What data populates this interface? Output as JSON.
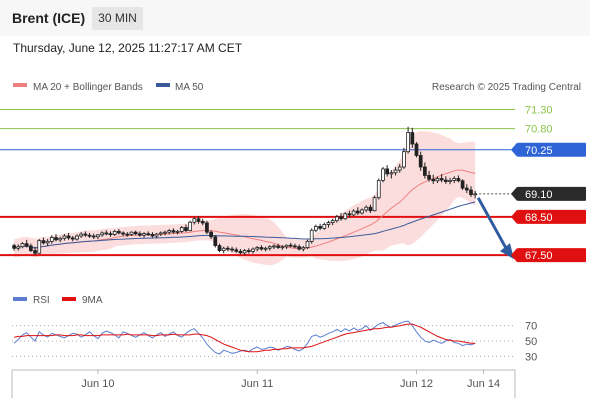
{
  "header": {
    "title": "Brent (ICE)",
    "timeframe_label": "30 MIN"
  },
  "subtitle": "Thursday, June 12, 2025 11:27:17 AM CET",
  "colors": {
    "ma20": "#f08080",
    "bollinger": "#fbd2d2",
    "ma50": "#3a5a9a",
    "up": "#ffffff",
    "down": "#222222",
    "resistance_green": "#8bc34a",
    "pivot": "#2f64d6",
    "support": "#e01010",
    "current": "#2b2b2b",
    "arrow": "#2e5c9e",
    "rsi": "#5b7ecf",
    "rsi_ma": "#e01010"
  },
  "legend": {
    "ma20_label": "MA 20 + Bollinger Bands",
    "ma50_label": "MA 50",
    "rsi_label": "RSI",
    "rsi_ma_label": "9MA",
    "credit": "Research © 2025 Trading Central"
  },
  "chart_data": {
    "type": "candlestick",
    "y_range": [
      66.8,
      71.6
    ],
    "x_labels": [
      {
        "label": "Jun 10",
        "index": 20
      },
      {
        "label": "Jun 11",
        "index": 58
      },
      {
        "label": "Jun 12",
        "index": 96
      },
      {
        "label": "Jun 14",
        "index": 112
      }
    ],
    "total_slots": 120,
    "candles": [
      [
        67.75,
        67.8,
        67.62,
        67.68
      ],
      [
        67.68,
        67.78,
        67.62,
        67.72
      ],
      [
        67.72,
        67.84,
        67.68,
        67.8
      ],
      [
        67.8,
        67.9,
        67.7,
        67.74
      ],
      [
        67.74,
        67.8,
        67.58,
        67.62
      ],
      [
        67.62,
        67.72,
        67.5,
        67.55
      ],
      [
        67.55,
        67.92,
        67.54,
        67.88
      ],
      [
        67.88,
        67.96,
        67.78,
        67.82
      ],
      [
        67.82,
        67.92,
        67.74,
        67.86
      ],
      [
        67.86,
        68.02,
        67.8,
        67.96
      ],
      [
        67.96,
        68.05,
        67.86,
        67.9
      ],
      [
        67.9,
        67.98,
        67.84,
        67.94
      ],
      [
        67.94,
        68.05,
        67.88,
        68.0
      ],
      [
        68.0,
        68.08,
        67.9,
        67.95
      ],
      [
        67.95,
        68.0,
        67.86,
        67.92
      ],
      [
        67.92,
        68.04,
        67.88,
        68.0
      ],
      [
        68.0,
        68.1,
        67.95,
        68.05
      ],
      [
        68.05,
        68.12,
        67.98,
        68.02
      ],
      [
        68.02,
        68.08,
        67.95,
        68.0
      ],
      [
        68.0,
        68.06,
        67.92,
        67.98
      ],
      [
        67.98,
        68.05,
        67.92,
        68.03
      ],
      [
        68.03,
        68.12,
        67.98,
        68.08
      ],
      [
        68.08,
        68.15,
        68.02,
        68.06
      ],
      [
        68.06,
        68.12,
        67.98,
        68.04
      ],
      [
        68.04,
        68.16,
        68.0,
        68.12
      ],
      [
        68.12,
        68.18,
        68.04,
        68.08
      ],
      [
        68.08,
        68.12,
        68.0,
        68.05
      ],
      [
        68.05,
        68.1,
        67.98,
        68.04
      ],
      [
        68.04,
        68.12,
        68.0,
        68.1
      ],
      [
        68.1,
        68.14,
        68.02,
        68.06
      ],
      [
        68.06,
        68.12,
        67.98,
        68.02
      ],
      [
        68.02,
        68.1,
        67.96,
        68.06
      ],
      [
        68.06,
        68.12,
        68.0,
        68.04
      ],
      [
        68.04,
        68.1,
        67.96,
        68.0
      ],
      [
        68.0,
        68.08,
        67.94,
        68.05
      ],
      [
        68.05,
        68.12,
        68.0,
        68.08
      ],
      [
        68.08,
        68.14,
        68.02,
        68.1
      ],
      [
        68.1,
        68.18,
        68.04,
        68.14
      ],
      [
        68.14,
        68.2,
        68.06,
        68.1
      ],
      [
        68.1,
        68.16,
        68.04,
        68.12
      ],
      [
        68.12,
        68.26,
        68.08,
        68.22
      ],
      [
        68.22,
        68.3,
        68.1,
        68.14
      ],
      [
        68.14,
        68.4,
        68.12,
        68.36
      ],
      [
        68.36,
        68.5,
        68.3,
        68.45
      ],
      [
        68.45,
        68.52,
        68.32,
        68.38
      ],
      [
        68.38,
        68.45,
        68.28,
        68.34
      ],
      [
        68.34,
        68.4,
        68.05,
        68.1
      ],
      [
        68.1,
        68.15,
        67.92,
        67.98
      ],
      [
        67.98,
        68.02,
        67.7,
        67.75
      ],
      [
        67.75,
        67.8,
        67.58,
        67.62
      ],
      [
        67.62,
        67.72,
        67.55,
        67.68
      ],
      [
        67.68,
        67.74,
        67.6,
        67.66
      ],
      [
        67.66,
        67.72,
        67.58,
        67.64
      ],
      [
        67.64,
        67.7,
        67.56,
        67.6
      ],
      [
        67.6,
        67.66,
        67.52,
        67.56
      ],
      [
        67.56,
        67.66,
        67.5,
        67.62
      ],
      [
        67.62,
        67.68,
        67.54,
        67.6
      ],
      [
        67.6,
        67.7,
        67.54,
        67.66
      ],
      [
        67.66,
        67.74,
        67.6,
        67.7
      ],
      [
        67.7,
        67.76,
        67.62,
        67.66
      ],
      [
        67.66,
        67.72,
        67.6,
        67.68
      ],
      [
        67.68,
        67.76,
        67.62,
        67.72
      ],
      [
        67.72,
        67.78,
        67.66,
        67.74
      ],
      [
        67.74,
        67.8,
        67.66,
        67.7
      ],
      [
        67.7,
        67.76,
        67.64,
        67.72
      ],
      [
        67.72,
        67.78,
        67.66,
        67.76
      ],
      [
        67.76,
        67.82,
        67.7,
        67.74
      ],
      [
        67.74,
        67.8,
        67.68,
        67.72
      ],
      [
        67.72,
        67.78,
        67.62,
        67.66
      ],
      [
        67.66,
        67.74,
        67.6,
        67.7
      ],
      [
        67.7,
        67.9,
        67.66,
        67.86
      ],
      [
        67.86,
        68.2,
        67.8,
        68.15
      ],
      [
        68.15,
        68.3,
        68.1,
        68.25
      ],
      [
        68.25,
        68.32,
        68.15,
        68.2
      ],
      [
        68.2,
        68.35,
        68.16,
        68.3
      ],
      [
        68.3,
        68.4,
        68.22,
        68.35
      ],
      [
        68.35,
        68.45,
        68.28,
        68.4
      ],
      [
        68.4,
        68.55,
        68.35,
        68.5
      ],
      [
        68.5,
        68.6,
        68.4,
        68.45
      ],
      [
        68.45,
        68.62,
        68.42,
        68.58
      ],
      [
        68.58,
        68.66,
        68.48,
        68.55
      ],
      [
        68.55,
        68.7,
        68.52,
        68.65
      ],
      [
        68.65,
        68.75,
        68.55,
        68.6
      ],
      [
        68.6,
        68.72,
        68.56,
        68.68
      ],
      [
        68.68,
        68.8,
        68.62,
        68.75
      ],
      [
        68.75,
        68.82,
        68.6,
        68.66
      ],
      [
        68.66,
        69.05,
        68.64,
        69.0
      ],
      [
        69.0,
        69.5,
        68.95,
        69.45
      ],
      [
        69.45,
        69.8,
        69.4,
        69.75
      ],
      [
        69.75,
        69.85,
        69.55,
        69.62
      ],
      [
        69.62,
        69.72,
        69.5,
        69.65
      ],
      [
        69.65,
        69.8,
        69.58,
        69.72
      ],
      [
        69.72,
        69.88,
        69.65,
        69.8
      ],
      [
        69.8,
        70.3,
        69.75,
        70.2
      ],
      [
        70.2,
        70.85,
        70.15,
        70.7
      ],
      [
        70.7,
        70.82,
        70.3,
        70.4
      ],
      [
        70.4,
        70.45,
        70.05,
        70.1
      ],
      [
        70.1,
        70.2,
        69.7,
        69.8
      ],
      [
        69.8,
        69.92,
        69.5,
        69.58
      ],
      [
        69.58,
        69.7,
        69.42,
        69.48
      ],
      [
        69.48,
        69.6,
        69.36,
        69.44
      ],
      [
        69.44,
        69.55,
        69.38,
        69.5
      ],
      [
        69.5,
        69.62,
        69.4,
        69.46
      ],
      [
        69.46,
        69.56,
        69.36,
        69.42
      ],
      [
        69.42,
        69.52,
        69.35,
        69.45
      ],
      [
        69.45,
        69.56,
        69.38,
        69.5
      ],
      [
        69.5,
        69.58,
        69.4,
        69.44
      ],
      [
        69.44,
        69.48,
        69.2,
        69.25
      ],
      [
        69.25,
        69.35,
        69.12,
        69.2
      ],
      [
        69.2,
        69.3,
        69.02,
        69.08
      ],
      [
        69.08,
        69.18,
        68.98,
        69.1
      ]
    ],
    "levels": [
      {
        "value": 71.3,
        "label": "71.30",
        "kind": "resistance-minor"
      },
      {
        "value": 70.8,
        "label": "70.80",
        "kind": "resistance-minor"
      },
      {
        "value": 70.25,
        "label": "70.25",
        "kind": "pivot"
      },
      {
        "value": 69.1,
        "label": "69.10",
        "kind": "current"
      },
      {
        "value": 68.5,
        "label": "68.50",
        "kind": "support"
      },
      {
        "value": 67.5,
        "label": "67.50",
        "kind": "support"
      }
    ],
    "forecast_arrow": {
      "from": 69.1,
      "to": 67.5
    },
    "rsi": {
      "y_range": [
        20,
        80
      ],
      "ticks": [
        70,
        50,
        30
      ],
      "rsi_values": [
        47,
        52,
        58,
        61,
        55,
        50,
        62,
        58,
        55,
        60,
        58,
        56,
        54,
        57,
        60,
        59,
        55,
        58,
        62,
        57,
        53,
        60,
        63,
        61,
        58,
        54,
        62,
        60,
        57,
        55,
        58,
        61,
        57,
        54,
        58,
        61,
        56,
        59,
        62,
        57,
        55,
        60,
        64,
        66,
        60,
        54,
        46,
        40,
        35,
        33,
        38,
        36,
        34,
        35,
        37,
        38,
        36,
        40,
        42,
        39,
        40,
        42,
        41,
        38,
        40,
        43,
        42,
        39,
        37,
        40,
        47,
        56,
        58,
        55,
        57,
        60,
        62,
        65,
        62,
        66,
        63,
        67,
        64,
        66,
        70,
        64,
        68,
        72,
        74,
        70,
        68,
        71,
        73,
        75,
        76,
        70,
        62,
        55,
        50,
        48,
        51,
        49,
        47,
        50,
        52,
        48,
        47,
        44,
        46,
        45,
        47
      ],
      "ma_values": [
        55,
        56,
        56,
        57,
        57,
        57,
        57,
        57,
        57,
        57,
        58,
        58,
        57,
        57,
        57,
        58,
        58,
        57,
        57,
        57,
        57,
        58,
        58,
        58,
        58,
        58,
        58,
        59,
        58,
        58,
        58,
        58,
        58,
        57,
        57,
        58,
        58,
        58,
        59,
        58,
        58,
        58,
        58,
        59,
        59,
        58,
        57,
        55,
        52,
        49,
        46,
        44,
        42,
        40,
        38,
        37,
        36,
        36,
        36,
        37,
        38,
        38,
        39,
        39,
        40,
        40,
        41,
        41,
        41,
        41,
        42,
        43,
        45,
        47,
        49,
        51,
        53,
        55,
        57,
        59,
        60,
        61,
        62,
        63,
        64,
        65,
        66,
        66,
        67,
        68,
        68,
        69,
        70,
        71,
        72,
        72,
        70,
        68,
        65,
        62,
        59,
        56,
        54,
        52,
        51,
        50,
        50,
        49,
        48,
        47,
        47
      ]
    }
  }
}
